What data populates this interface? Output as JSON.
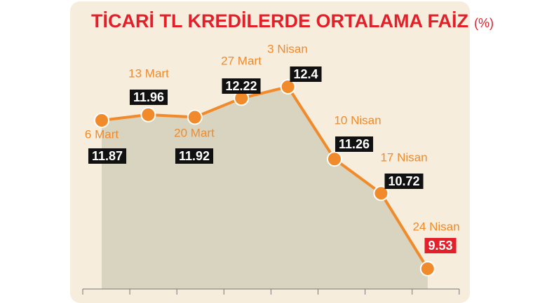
{
  "chart_data": {
    "type": "line",
    "title": "TİCARİ TL KREDİLERDE ORTALAMA FAİZ",
    "unit": "(%)",
    "categories": [
      "6 Mart",
      "13 Mart",
      "20 Mart",
      "27 Mart",
      "3 Nisan",
      "10 Nisan",
      "17 Nisan",
      "24 Nisan"
    ],
    "values": [
      11.87,
      11.96,
      11.92,
      12.22,
      12.4,
      11.26,
      10.72,
      9.53
    ],
    "color": "#f08a2b",
    "area_color": "#d8d4bf"
  }
}
